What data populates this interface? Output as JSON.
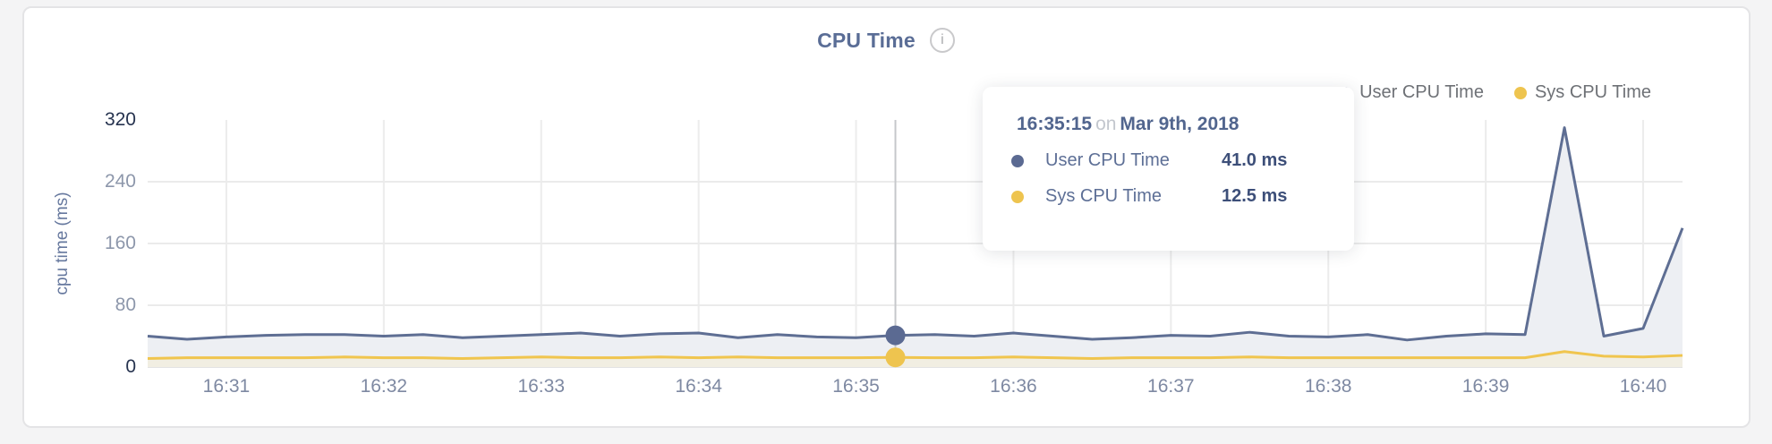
{
  "title": "CPU Time",
  "info_glyph": "i",
  "legend": {
    "items": [
      {
        "label": "User CPU Time",
        "color": "#5b6a92"
      },
      {
        "label": "Sys CPU Time",
        "color": "#eec44f"
      }
    ]
  },
  "y_axis": {
    "name": "cpu time (ms)",
    "ticks": [
      0,
      80,
      160,
      240,
      320
    ],
    "min": 0,
    "max": 320
  },
  "x_axis": {
    "ticks": [
      "16:31",
      "16:32",
      "16:33",
      "16:34",
      "16:35",
      "16:36",
      "16:37",
      "16:38",
      "16:39",
      "16:40"
    ]
  },
  "tooltip": {
    "time": "16:35:15",
    "connector": "on",
    "date": "Mar 9th, 2018",
    "rows": [
      {
        "label": "User CPU Time",
        "value": "41.0 ms",
        "color": "#5b6a92"
      },
      {
        "label": "Sys CPU Time",
        "value": "12.5 ms",
        "color": "#eec44f"
      }
    ]
  },
  "colors": {
    "user_line": "#5e6e93",
    "user_fill": "#edeff3",
    "sys_line": "#f0c54e",
    "sys_fill": "#f1eee2",
    "grid": "#ececec",
    "hover_line": "#c6c8cb",
    "page_background": "#f4f4f5"
  },
  "chart_data": {
    "type": "line",
    "title": "CPU Time",
    "xlabel": "",
    "ylabel": "cpu time (ms)",
    "ylim": [
      0,
      320
    ],
    "grid": true,
    "legend_position": "top-right",
    "x_tick_labels": [
      "16:31",
      "16:32",
      "16:33",
      "16:34",
      "16:35",
      "16:36",
      "16:37",
      "16:38",
      "16:39",
      "16:40"
    ],
    "x": [
      "16:30:30",
      "16:30:45",
      "16:31:00",
      "16:31:15",
      "16:31:30",
      "16:31:45",
      "16:32:00",
      "16:32:15",
      "16:32:30",
      "16:32:45",
      "16:33:00",
      "16:33:15",
      "16:33:30",
      "16:33:45",
      "16:34:00",
      "16:34:15",
      "16:34:30",
      "16:34:45",
      "16:35:00",
      "16:35:15",
      "16:35:30",
      "16:35:45",
      "16:36:00",
      "16:36:15",
      "16:36:30",
      "16:36:45",
      "16:37:00",
      "16:37:15",
      "16:37:30",
      "16:37:45",
      "16:38:00",
      "16:38:15",
      "16:38:30",
      "16:38:45",
      "16:39:00",
      "16:39:15",
      "16:39:30",
      "16:39:45",
      "16:40:00",
      "16:40:15"
    ],
    "series": [
      {
        "name": "User CPU Time",
        "unit": "ms",
        "values": [
          40,
          36,
          39,
          41,
          42,
          42,
          40,
          42,
          38,
          40,
          42,
          44,
          40,
          43,
          44,
          38,
          42,
          39,
          38,
          41,
          42,
          40,
          44,
          40,
          36,
          38,
          41,
          40,
          45,
          40,
          39,
          42,
          35,
          40,
          43,
          42,
          310,
          40,
          50,
          180
        ]
      },
      {
        "name": "Sys CPU Time",
        "unit": "ms",
        "values": [
          11,
          12,
          12,
          12,
          12,
          13,
          12,
          12,
          11,
          12,
          13,
          12,
          12,
          13,
          12,
          13,
          12,
          12,
          12,
          12.5,
          12,
          12,
          13,
          12,
          11,
          12,
          12,
          12,
          13,
          12,
          12,
          12,
          12,
          12,
          12,
          12,
          20,
          14,
          13,
          15
        ]
      }
    ],
    "hover": {
      "index": 19,
      "time": "16:35:15",
      "user_value_ms": 41.0,
      "sys_value_ms": 12.5
    }
  }
}
